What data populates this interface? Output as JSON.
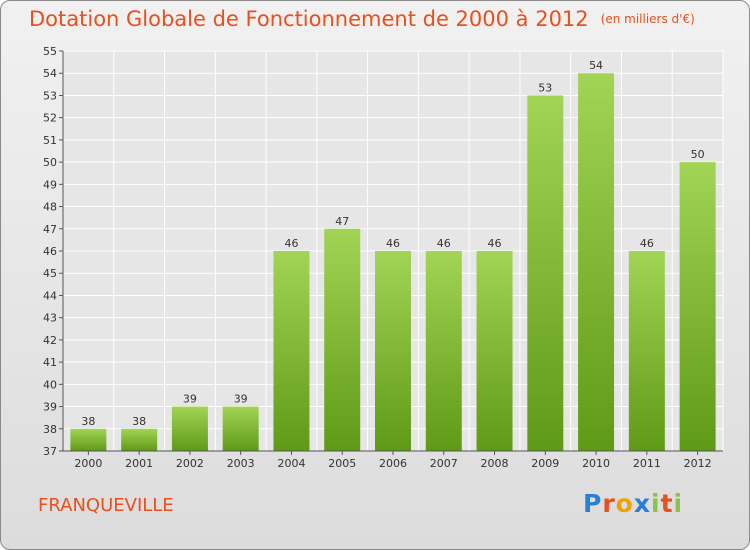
{
  "title": "Dotation Globale de Fonctionnement de 2000 à 2012",
  "unit": "(en milliers d'€)",
  "commune": "FRANQUEVILLE",
  "logo": {
    "p": "P",
    "r": "r",
    "o": "o",
    "x": "x",
    "i1": "i",
    "t": "t",
    "i2": "i"
  },
  "chart_data": {
    "type": "bar",
    "categories": [
      "2000",
      "2001",
      "2002",
      "2003",
      "2004",
      "2005",
      "2006",
      "2007",
      "2008",
      "2009",
      "2010",
      "2011",
      "2012"
    ],
    "values": [
      38,
      38,
      39,
      39,
      46,
      47,
      46,
      46,
      46,
      53,
      54,
      46,
      50
    ],
    "ylim": [
      37,
      55
    ],
    "yticks": [
      37,
      38,
      39,
      40,
      41,
      42,
      43,
      44,
      45,
      46,
      47,
      48,
      49,
      50,
      51,
      52,
      53,
      54,
      55
    ],
    "grid": true,
    "bar_color_top": "#a2d455",
    "bar_color_bottom": "#5f9a16"
  }
}
